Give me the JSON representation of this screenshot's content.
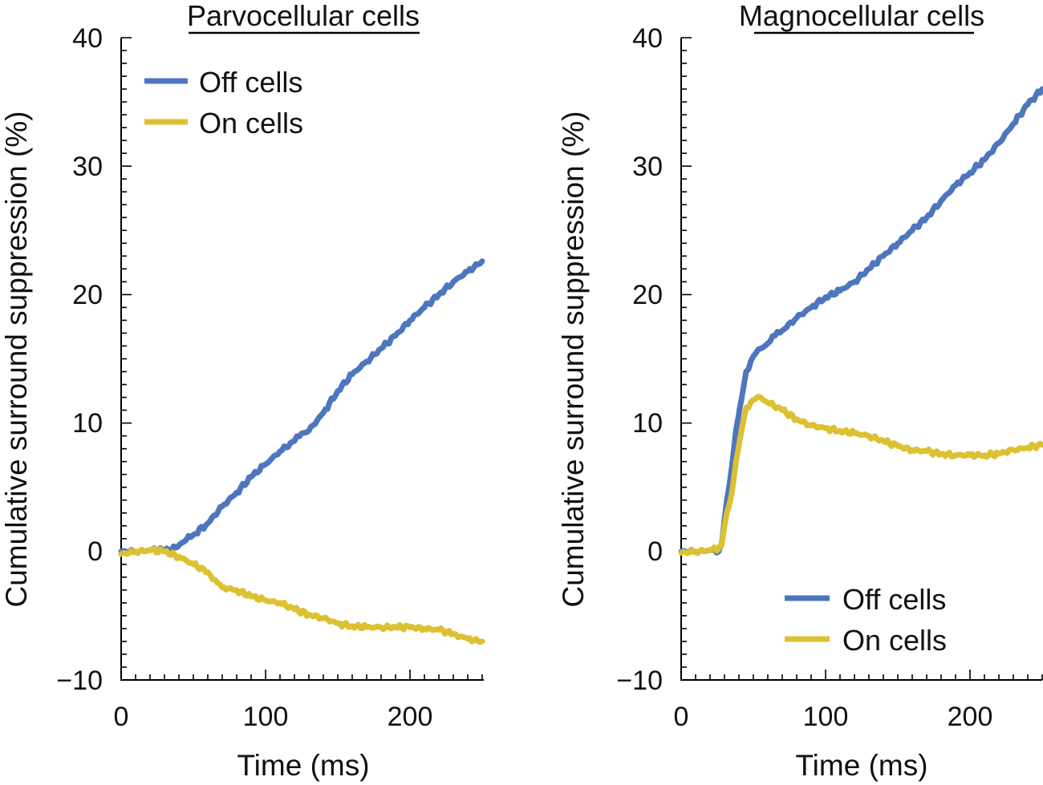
{
  "colors": {
    "off": "#4e76be",
    "on": "#dcc133",
    "axis": "#000000"
  },
  "chart_data": [
    {
      "type": "line",
      "title": "Parvocellular cells",
      "xlabel": "Time (ms)",
      "ylabel": "Cumulative surround suppression (%)",
      "xlim": [
        0,
        250
      ],
      "ylim": [
        -10,
        40
      ],
      "xticks": [
        0,
        100,
        200
      ],
      "yticks": [
        -10,
        0,
        10,
        20,
        30,
        40
      ],
      "xtick_labels": [
        "0",
        "100",
        "200"
      ],
      "ytick_labels": [
        "−10",
        "0",
        "10",
        "20",
        "30",
        "40"
      ],
      "legend_position": "top-left",
      "series": [
        {
          "name": "Off cells",
          "color_key": "off",
          "x": [
            0,
            10,
            20,
            30,
            38,
            45,
            50,
            60,
            70,
            80,
            90,
            100,
            110,
            120,
            125,
            130,
            140,
            150,
            160,
            170,
            180,
            190,
            200,
            210,
            220,
            230,
            240,
            250
          ],
          "y": [
            0,
            0,
            0.1,
            0.1,
            0.3,
            0.9,
            1.3,
            2.2,
            3.5,
            4.6,
            5.8,
            6.8,
            7.8,
            8.6,
            9.2,
            9.4,
            10.8,
            12.5,
            13.8,
            14.8,
            15.8,
            16.8,
            18.0,
            19.0,
            20.0,
            21.0,
            21.8,
            22.6
          ]
        },
        {
          "name": "On cells",
          "color_key": "on",
          "x": [
            0,
            10,
            20,
            30,
            40,
            50,
            60,
            65,
            70,
            80,
            90,
            100,
            110,
            120,
            130,
            140,
            150,
            160,
            170,
            180,
            190,
            200,
            210,
            220,
            230,
            235,
            240,
            250
          ],
          "y": [
            -0.2,
            0,
            0.1,
            0,
            -0.4,
            -1.0,
            -1.6,
            -2.2,
            -2.8,
            -3.0,
            -3.5,
            -3.8,
            -4.0,
            -4.5,
            -4.9,
            -5.2,
            -5.6,
            -5.8,
            -5.9,
            -5.9,
            -5.9,
            -5.9,
            -6.0,
            -6.1,
            -6.4,
            -6.6,
            -6.8,
            -7.0
          ]
        }
      ]
    },
    {
      "type": "line",
      "title": "Magnocellular cells",
      "xlabel": "Time (ms)",
      "ylabel": "Cumulative surround suppression (%)",
      "xlim": [
        0,
        250
      ],
      "ylim": [
        -10,
        40
      ],
      "xticks": [
        0,
        100,
        200
      ],
      "yticks": [
        -10,
        0,
        10,
        20,
        30,
        40
      ],
      "xtick_labels": [
        "0",
        "100",
        "200"
      ],
      "ytick_labels": [
        "−10",
        "0",
        "10",
        "20",
        "30",
        "40"
      ],
      "legend_position": "bottom-right",
      "series": [
        {
          "name": "Off cells",
          "color_key": "off",
          "x": [
            0,
            10,
            20,
            26,
            28,
            30,
            35,
            38,
            42,
            45,
            50,
            55,
            60,
            65,
            70,
            80,
            90,
            100,
            110,
            120,
            130,
            140,
            150,
            160,
            170,
            180,
            190,
            200,
            210,
            220,
            230,
            240,
            250
          ],
          "y": [
            0,
            0,
            0.1,
            0,
            0.5,
            2.5,
            6.5,
            9.5,
            12.0,
            14.0,
            15.2,
            15.8,
            16.2,
            16.8,
            17.2,
            18.2,
            19.0,
            19.8,
            20.3,
            21.0,
            22.0,
            23.0,
            24.0,
            25.0,
            26.0,
            27.3,
            28.5,
            29.5,
            30.5,
            31.8,
            33.3,
            34.8,
            36.0
          ]
        },
        {
          "name": "On cells",
          "color_key": "on",
          "x": [
            0,
            10,
            20,
            26,
            28,
            30,
            35,
            38,
            42,
            45,
            50,
            55,
            60,
            70,
            80,
            90,
            100,
            110,
            120,
            130,
            140,
            150,
            160,
            170,
            180,
            190,
            200,
            210,
            220,
            230,
            240,
            250
          ],
          "y": [
            -0.1,
            0,
            0.1,
            0.2,
            0.5,
            2.0,
            4.5,
            7.0,
            9.5,
            11.2,
            11.8,
            12.0,
            11.6,
            11.0,
            10.3,
            9.8,
            9.6,
            9.4,
            9.2,
            9.0,
            8.6,
            8.2,
            7.9,
            7.8,
            7.6,
            7.5,
            7.5,
            7.5,
            7.6,
            7.9,
            8.1,
            8.3
          ]
        }
      ]
    }
  ]
}
